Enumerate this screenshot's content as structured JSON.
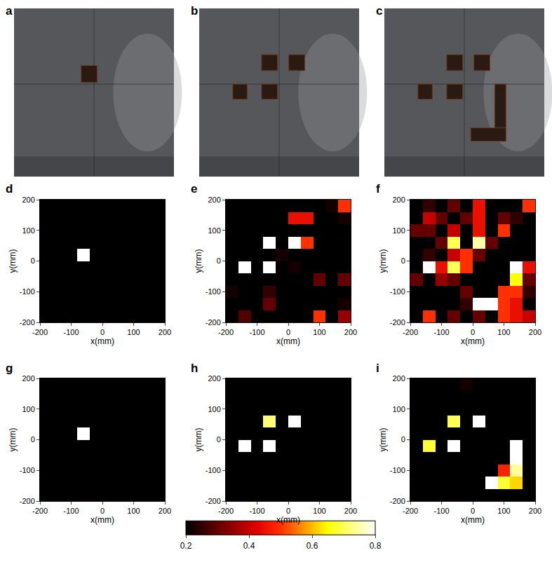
{
  "chart_data": [
    {
      "type": "photo",
      "panel": "a"
    },
    {
      "type": "photo",
      "panel": "b"
    },
    {
      "type": "photo",
      "panel": "c"
    },
    {
      "type": "heatmap",
      "panel": "d",
      "x_label": "x(mm)",
      "y_label": "y(mm)",
      "x": [
        -180,
        -140,
        -100,
        -60,
        -20,
        20,
        60,
        100,
        140,
        180
      ],
      "y": [
        -180,
        -140,
        -100,
        -60,
        -20,
        20,
        60,
        100,
        140,
        180
      ],
      "xlim": [
        -200,
        200
      ],
      "ylim": [
        -200,
        200
      ],
      "xticks": [
        -200,
        -100,
        0,
        100,
        200
      ],
      "yticks": [
        -200,
        -100,
        0,
        100,
        200
      ],
      "cells": [
        [
          0.2,
          0.2,
          0.2,
          0.2,
          0.2,
          0.2,
          0.2,
          0.2,
          0.2,
          0.2
        ],
        [
          0.2,
          0.2,
          0.2,
          0.2,
          0.2,
          0.2,
          0.2,
          0.2,
          0.2,
          0.2
        ],
        [
          0.2,
          0.2,
          0.2,
          0.2,
          0.2,
          0.2,
          0.2,
          0.2,
          0.2,
          0.2
        ],
        [
          0.2,
          0.2,
          0.2,
          0.2,
          0.2,
          0.2,
          0.2,
          0.2,
          0.2,
          0.2
        ],
        [
          0.2,
          0.2,
          0.2,
          0.2,
          0.2,
          0.2,
          0.2,
          0.2,
          0.2,
          0.2
        ],
        [
          0.2,
          0.2,
          0.2,
          0.8,
          0.2,
          0.2,
          0.2,
          0.2,
          0.2,
          0.2
        ],
        [
          0.2,
          0.2,
          0.2,
          0.2,
          0.2,
          0.2,
          0.2,
          0.2,
          0.2,
          0.2
        ],
        [
          0.2,
          0.2,
          0.2,
          0.2,
          0.2,
          0.2,
          0.2,
          0.2,
          0.2,
          0.2
        ],
        [
          0.2,
          0.2,
          0.2,
          0.2,
          0.2,
          0.2,
          0.2,
          0.2,
          0.2,
          0.2
        ],
        [
          0.2,
          0.2,
          0.2,
          0.2,
          0.2,
          0.2,
          0.2,
          0.2,
          0.2,
          0.2
        ]
      ]
    },
    {
      "type": "heatmap",
      "panel": "e",
      "x_label": "x(mm)",
      "y_label": "y(mm)",
      "x": [
        -180,
        -140,
        -100,
        -60,
        -20,
        20,
        60,
        100,
        140,
        180
      ],
      "y": [
        -180,
        -140,
        -100,
        -60,
        -20,
        20,
        60,
        100,
        140,
        180
      ],
      "xlim": [
        -200,
        200
      ],
      "ylim": [
        -200,
        200
      ],
      "xticks": [
        -200,
        -100,
        0,
        100,
        200
      ],
      "yticks": [
        -200,
        -100,
        0,
        100,
        200
      ],
      "cells": [
        [
          0.2,
          0.28,
          0.2,
          0.2,
          0.2,
          0.2,
          0.2,
          0.5,
          0.2,
          0.35
        ],
        [
          0.2,
          0.2,
          0.2,
          0.3,
          0.2,
          0.2,
          0.2,
          0.2,
          0.2,
          0.22
        ],
        [
          0.22,
          0.2,
          0.2,
          0.25,
          0.2,
          0.2,
          0.2,
          0.2,
          0.2,
          0.2
        ],
        [
          0.2,
          0.2,
          0.2,
          0.2,
          0.2,
          0.2,
          0.2,
          0.3,
          0.2,
          0.3
        ],
        [
          0.2,
          0.8,
          0.2,
          0.8,
          0.2,
          0.22,
          0.2,
          0.2,
          0.2,
          0.2
        ],
        [
          0.2,
          0.2,
          0.2,
          0.2,
          0.22,
          0.2,
          0.2,
          0.2,
          0.2,
          0.2
        ],
        [
          0.2,
          0.2,
          0.2,
          0.8,
          0.2,
          0.8,
          0.5,
          0.2,
          0.2,
          0.2
        ],
        [
          0.2,
          0.2,
          0.2,
          0.2,
          0.2,
          0.2,
          0.2,
          0.2,
          0.2,
          0.2
        ],
        [
          0.2,
          0.2,
          0.2,
          0.2,
          0.2,
          0.45,
          0.45,
          0.2,
          0.2,
          0.22
        ],
        [
          0.2,
          0.2,
          0.2,
          0.2,
          0.2,
          0.2,
          0.2,
          0.2,
          0.22,
          0.5
        ]
      ]
    },
    {
      "type": "heatmap",
      "panel": "f",
      "x_label": "x(mm)",
      "y_label": "y(mm)",
      "x": [
        -180,
        -140,
        -100,
        -60,
        -20,
        20,
        60,
        100,
        140,
        180
      ],
      "y": [
        -180,
        -140,
        -100,
        -60,
        -20,
        20,
        60,
        100,
        140,
        180
      ],
      "xlim": [
        -200,
        200
      ],
      "ylim": [
        -200,
        200
      ],
      "xticks": [
        -200,
        -100,
        0,
        100,
        200
      ],
      "yticks": [
        -200,
        -100,
        0,
        100,
        200
      ],
      "cells": [
        [
          0.2,
          0.5,
          0.2,
          0.3,
          0.2,
          0.3,
          0.2,
          0.5,
          0.45,
          0.4
        ],
        [
          0.2,
          0.2,
          0.2,
          0.2,
          0.25,
          0.8,
          0.8,
          0.5,
          0.45,
          0.2
        ],
        [
          0.2,
          0.2,
          0.2,
          0.2,
          0.3,
          0.2,
          0.2,
          0.5,
          0.5,
          0.25
        ],
        [
          0.3,
          0.2,
          0.35,
          0.3,
          0.2,
          0.2,
          0.2,
          0.2,
          0.65,
          0.3
        ],
        [
          0.2,
          0.8,
          0.45,
          0.7,
          0.5,
          0.2,
          0.2,
          0.2,
          0.8,
          0.45
        ],
        [
          0.2,
          0.25,
          0.2,
          0.4,
          0.5,
          0.3,
          0.2,
          0.2,
          0.2,
          0.2
        ],
        [
          0.2,
          0.2,
          0.3,
          0.7,
          0.2,
          0.75,
          0.3,
          0.2,
          0.2,
          0.2
        ],
        [
          0.3,
          0.3,
          0.2,
          0.4,
          0.2,
          0.45,
          0.2,
          0.5,
          0.2,
          0.2
        ],
        [
          0.2,
          0.4,
          0.3,
          0.2,
          0.3,
          0.45,
          0.2,
          0.3,
          0.25,
          0.2
        ],
        [
          0.2,
          0.25,
          0.2,
          0.3,
          0.2,
          0.45,
          0.2,
          0.2,
          0.2,
          0.5
        ]
      ]
    },
    {
      "type": "heatmap",
      "panel": "g",
      "x_label": "x(mm)",
      "y_label": "y(mm)",
      "x": [
        -180,
        -140,
        -100,
        -60,
        -20,
        20,
        60,
        100,
        140,
        180
      ],
      "y": [
        -180,
        -140,
        -100,
        -60,
        -20,
        20,
        60,
        100,
        140,
        180
      ],
      "xlim": [
        -200,
        200
      ],
      "ylim": [
        -200,
        200
      ],
      "xticks": [
        -200,
        -100,
        0,
        100,
        200
      ],
      "yticks": [
        -200,
        -100,
        0,
        100,
        200
      ],
      "cells": [
        [
          0.2,
          0.2,
          0.2,
          0.2,
          0.2,
          0.2,
          0.2,
          0.2,
          0.2,
          0.2
        ],
        [
          0.2,
          0.2,
          0.2,
          0.2,
          0.2,
          0.2,
          0.2,
          0.2,
          0.2,
          0.2
        ],
        [
          0.2,
          0.2,
          0.2,
          0.2,
          0.2,
          0.2,
          0.2,
          0.2,
          0.2,
          0.2
        ],
        [
          0.2,
          0.2,
          0.2,
          0.2,
          0.2,
          0.2,
          0.2,
          0.2,
          0.2,
          0.2
        ],
        [
          0.2,
          0.2,
          0.2,
          0.2,
          0.2,
          0.2,
          0.2,
          0.2,
          0.2,
          0.2
        ],
        [
          0.2,
          0.2,
          0.2,
          0.8,
          0.2,
          0.2,
          0.2,
          0.2,
          0.2,
          0.2
        ],
        [
          0.2,
          0.2,
          0.2,
          0.2,
          0.2,
          0.2,
          0.2,
          0.2,
          0.2,
          0.2
        ],
        [
          0.2,
          0.2,
          0.2,
          0.2,
          0.2,
          0.2,
          0.2,
          0.2,
          0.2,
          0.2
        ],
        [
          0.2,
          0.2,
          0.2,
          0.2,
          0.2,
          0.2,
          0.2,
          0.2,
          0.2,
          0.2
        ],
        [
          0.2,
          0.2,
          0.2,
          0.2,
          0.2,
          0.2,
          0.2,
          0.2,
          0.2,
          0.2
        ]
      ]
    },
    {
      "type": "heatmap",
      "panel": "h",
      "x_label": "x(mm)",
      "y_label": "y(mm)",
      "x": [
        -180,
        -140,
        -100,
        -60,
        -20,
        20,
        60,
        100,
        140,
        180
      ],
      "y": [
        -180,
        -140,
        -100,
        -60,
        -20,
        20,
        60,
        100,
        140,
        180
      ],
      "xlim": [
        -200,
        200
      ],
      "ylim": [
        -200,
        200
      ],
      "xticks": [
        -200,
        -100,
        0,
        100,
        200
      ],
      "yticks": [
        -200,
        -100,
        0,
        100,
        200
      ],
      "cells": [
        [
          0.2,
          0.2,
          0.2,
          0.2,
          0.2,
          0.2,
          0.2,
          0.2,
          0.2,
          0.2
        ],
        [
          0.2,
          0.2,
          0.2,
          0.2,
          0.2,
          0.2,
          0.2,
          0.2,
          0.2,
          0.2
        ],
        [
          0.2,
          0.2,
          0.2,
          0.2,
          0.2,
          0.2,
          0.2,
          0.2,
          0.2,
          0.2
        ],
        [
          0.2,
          0.2,
          0.2,
          0.2,
          0.2,
          0.2,
          0.2,
          0.2,
          0.2,
          0.2
        ],
        [
          0.2,
          0.8,
          0.2,
          0.8,
          0.2,
          0.2,
          0.2,
          0.2,
          0.2,
          0.2
        ],
        [
          0.2,
          0.2,
          0.2,
          0.2,
          0.2,
          0.2,
          0.2,
          0.2,
          0.2,
          0.2
        ],
        [
          0.2,
          0.2,
          0.2,
          0.72,
          0.2,
          0.8,
          0.2,
          0.2,
          0.2,
          0.2
        ],
        [
          0.2,
          0.2,
          0.2,
          0.2,
          0.2,
          0.2,
          0.2,
          0.2,
          0.2,
          0.2
        ],
        [
          0.2,
          0.2,
          0.2,
          0.2,
          0.2,
          0.2,
          0.2,
          0.2,
          0.2,
          0.2
        ],
        [
          0.2,
          0.2,
          0.2,
          0.2,
          0.2,
          0.2,
          0.2,
          0.2,
          0.2,
          0.2
        ]
      ]
    },
    {
      "type": "heatmap",
      "panel": "i",
      "x_label": "x(mm)",
      "y_label": "y(mm)",
      "x": [
        -180,
        -140,
        -100,
        -60,
        -20,
        20,
        60,
        100,
        140,
        180
      ],
      "y": [
        -180,
        -140,
        -100,
        -60,
        -20,
        20,
        60,
        100,
        140,
        180
      ],
      "xlim": [
        -200,
        200
      ],
      "ylim": [
        -200,
        200
      ],
      "xticks": [
        -200,
        -100,
        0,
        100,
        200
      ],
      "yticks": [
        -200,
        -100,
        0,
        100,
        200
      ],
      "cells": [
        [
          0.2,
          0.2,
          0.2,
          0.2,
          0.2,
          0.2,
          0.2,
          0.2,
          0.2,
          0.2
        ],
        [
          0.2,
          0.2,
          0.2,
          0.2,
          0.2,
          0.2,
          0.8,
          0.68,
          0.62,
          0.2
        ],
        [
          0.2,
          0.2,
          0.2,
          0.2,
          0.2,
          0.2,
          0.2,
          0.48,
          0.74,
          0.2
        ],
        [
          0.2,
          0.2,
          0.2,
          0.2,
          0.2,
          0.2,
          0.2,
          0.2,
          0.8,
          0.2
        ],
        [
          0.2,
          0.68,
          0.2,
          0.8,
          0.2,
          0.2,
          0.2,
          0.2,
          0.8,
          0.2
        ],
        [
          0.2,
          0.2,
          0.2,
          0.2,
          0.2,
          0.2,
          0.2,
          0.2,
          0.2,
          0.2
        ],
        [
          0.2,
          0.2,
          0.2,
          0.7,
          0.2,
          0.8,
          0.2,
          0.2,
          0.2,
          0.2
        ],
        [
          0.2,
          0.2,
          0.2,
          0.2,
          0.2,
          0.2,
          0.2,
          0.2,
          0.2,
          0.2
        ],
        [
          0.2,
          0.2,
          0.2,
          0.2,
          0.2,
          0.2,
          0.2,
          0.2,
          0.2,
          0.2
        ],
        [
          0.2,
          0.2,
          0.2,
          0.2,
          0.22,
          0.2,
          0.2,
          0.2,
          0.2,
          0.2
        ]
      ]
    }
  ],
  "colorbar": {
    "range": [
      0.2,
      0.8
    ],
    "ticks": [
      0.2,
      0.4,
      0.6,
      0.8
    ]
  }
}
